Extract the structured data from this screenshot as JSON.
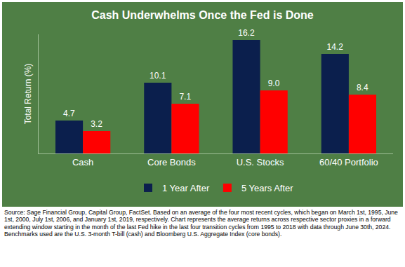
{
  "chart_data": {
    "type": "bar",
    "title": "Cash Underwhelms Once the Fed is Done",
    "y_label": "Total Return (%)",
    "categories": [
      "Cash",
      "Core Bonds",
      "U.S. Stocks",
      "60/40 Portfolio"
    ],
    "series": [
      {
        "name": "1 Year After",
        "color": "#0b1f4d",
        "values": [
          4.7,
          10.1,
          16.2,
          14.2
        ],
        "value_labels": [
          "4.7",
          "10.1",
          "16.2",
          "14.2"
        ]
      },
      {
        "name": "5 Years After",
        "color": "#ff0000",
        "values": [
          3.2,
          7.1,
          9.0,
          8.4
        ],
        "value_labels": [
          "3.2",
          "7.1",
          "9.0",
          "8.4"
        ]
      }
    ],
    "ylim": [
      0,
      17
    ],
    "tick_labels": "x",
    "grid": false,
    "legend": "bottom",
    "data_labels": true,
    "source_note": "Source: Sage Financial Group, Capital Group, FactSet. Based on an average of the four most recent cycles, which began on March 1st, 1995, June 1st, 2000, July 1st, 2006, and January 1st, 2019, respectively. Chart represents the average returns across respective sector proxies in a forward extending window starting in the month of the last Fed hike in the last four transition cycles from 1995 to 2018 with data through June 30th, 2024. Benchmarks used are the U.S. 3-month T-bill (cash) and Bloomberg U.S. Aggregate Index (core bonds)."
  }
}
